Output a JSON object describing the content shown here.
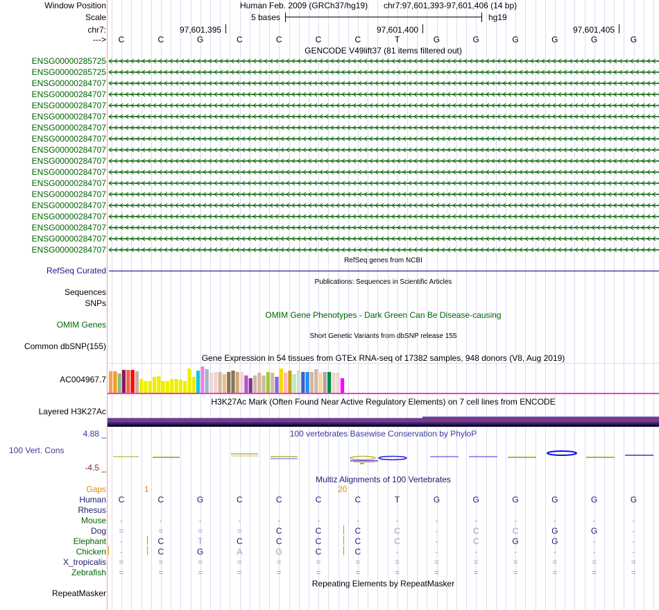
{
  "header": {
    "window_position_label": "Window Position",
    "assembly_title": "Human Feb. 2009 (GRCh37/hg19)",
    "position_range": "chr7:97,601,393-97,601,406 (14 bp)",
    "scale_label": "Scale",
    "scale_text": "5 bases",
    "scale_db": "hg19",
    "chrom_label": "chr7:",
    "strand_label": "--->",
    "ticks": [
      "97,601,395",
      "97,601,400",
      "97,601,405"
    ],
    "bases": [
      "C",
      "C",
      "G",
      "C",
      "C",
      "C",
      "C",
      "T",
      "G",
      "G",
      "G",
      "G",
      "G",
      "G"
    ]
  },
  "gencode": {
    "title": "GENCODE V49lift37 (81 items filtered out)",
    "genes": [
      "ENSG00000285725",
      "ENSG00000285725",
      "ENSG00000284707",
      "ENSG00000284707",
      "ENSG00000284707",
      "ENSG00000284707",
      "ENSG00000284707",
      "ENSG00000284707",
      "ENSG00000284707",
      "ENSG00000284707",
      "ENSG00000284707",
      "ENSG00000284707",
      "ENSG00000284707",
      "ENSG00000284707",
      "ENSG00000284707",
      "ENSG00000284707",
      "ENSG00000284707",
      "ENSG00000284707"
    ],
    "color": "#006400"
  },
  "refseq": {
    "title": "RefSeq genes from NCBI",
    "label": "RefSeq Curated"
  },
  "publications": {
    "title": "Publications: Sequences in Scientific Articles",
    "label1": "Sequences",
    "label2": "SNPs"
  },
  "omim": {
    "title": "OMIM Gene Phenotypes - Dark Green Can Be Disease-causing",
    "label": "OMIM Genes"
  },
  "dbsnp": {
    "title": "Short Genetic Variants from dbSNP release 155",
    "label": "Common dbSNP(155)"
  },
  "gtex": {
    "title": "Gene Expression in 54 tissues from GTEx RNA-seq of 17382 samples, 948 donors (V8, Aug 2019)",
    "label": "AC004967.7",
    "bars": [
      {
        "c": "#f4a25a",
        "v": 0.82
      },
      {
        "c": "#eea015",
        "v": 0.82
      },
      {
        "c": "#8fbc8f",
        "v": 0.74
      },
      {
        "c": "#8b1a5a",
        "v": 0.88
      },
      {
        "c": "#e8664e",
        "v": 0.88
      },
      {
        "c": "#ff0000",
        "v": 0.88
      },
      {
        "c": "#c8b09a",
        "v": 0.82
      },
      {
        "c": "#eeee00",
        "v": 0.52
      },
      {
        "c": "#eeee00",
        "v": 0.44
      },
      {
        "c": "#eeee00",
        "v": 0.46
      },
      {
        "c": "#eeee00",
        "v": 0.6
      },
      {
        "c": "#eeee00",
        "v": 0.63
      },
      {
        "c": "#eeee00",
        "v": 0.44
      },
      {
        "c": "#eeee00",
        "v": 0.44
      },
      {
        "c": "#eeee00",
        "v": 0.52
      },
      {
        "c": "#eeee00",
        "v": 0.52
      },
      {
        "c": "#eeee00",
        "v": 0.49
      },
      {
        "c": "#eeee00",
        "v": 0.46
      },
      {
        "c": "#eeee00",
        "v": 0.92
      },
      {
        "c": "#eeee00",
        "v": 0.6
      },
      {
        "c": "#00ced1",
        "v": 0.85
      },
      {
        "c": "#ee82ee",
        "v": 1.0
      },
      {
        "c": "#9ab8c8",
        "v": 0.89
      },
      {
        "c": "#eed5d2",
        "v": 0.76
      },
      {
        "c": "#eed5d2",
        "v": 0.79
      },
      {
        "c": "#d2b9a0",
        "v": 0.79
      },
      {
        "c": "#e8c08c",
        "v": 0.71
      },
      {
        "c": "#8b7355",
        "v": 0.8
      },
      {
        "c": "#8b7355",
        "v": 0.85
      },
      {
        "c": "#cdaa7d",
        "v": 0.8
      },
      {
        "c": "#eed5d2",
        "v": 0.8
      },
      {
        "c": "#b452cd",
        "v": 0.65
      },
      {
        "c": "#7a378b",
        "v": 0.54
      },
      {
        "c": "#d2b9a0",
        "v": 0.65
      },
      {
        "c": "#d2b9a0",
        "v": 0.75
      },
      {
        "c": "#d2b9a0",
        "v": 0.65
      },
      {
        "c": "#9acd32",
        "v": 0.8
      },
      {
        "c": "#d2b9a0",
        "v": 0.77
      },
      {
        "c": "#7b68ee",
        "v": 0.6
      },
      {
        "c": "#ffd700",
        "v": 0.92
      },
      {
        "c": "#ffb6c1",
        "v": 0.76
      },
      {
        "c": "#cd9b1d",
        "v": 0.85
      },
      {
        "c": "#b4eeb4",
        "v": 0.71
      },
      {
        "c": "#d9d9d9",
        "v": 0.85
      },
      {
        "c": "#3a5fcd",
        "v": 0.79
      },
      {
        "c": "#1e90ff",
        "v": 0.79
      },
      {
        "c": "#d2b9a0",
        "v": 0.79
      },
      {
        "c": "#d2b9a0",
        "v": 0.89
      },
      {
        "c": "#ffd39b",
        "v": 0.77
      },
      {
        "c": "#a6a6a6",
        "v": 0.8
      },
      {
        "c": "#008b45",
        "v": 0.8
      },
      {
        "c": "#eed5d2",
        "v": 0.77
      },
      {
        "c": "#eed5d2",
        "v": 0.77
      },
      {
        "c": "#ff00ff",
        "v": 0.54
      }
    ]
  },
  "h3k27ac": {
    "title": "H3K27Ac Mark (Often Found Near Active Regulatory Elements) on 7 cell lines from ENCODE",
    "label": "Layered H3K27Ac"
  },
  "phylop": {
    "title": "100 vertebrates Basewise Conservation by PhyloP",
    "label": "100 Vert. Cons",
    "max": "4.88 _",
    "min": "-4.5 _"
  },
  "multiz": {
    "title": "Multiz Alignments of 100 Vertebrates",
    "gaps_label": "Gaps",
    "gap_numbers": [
      {
        "text": "1",
        "col": 0.5
      },
      {
        "text": "20",
        "col": 5.5
      }
    ],
    "species": [
      {
        "name": "Human",
        "color": "navy",
        "seq": [
          "C",
          "C",
          "G",
          "C",
          "C",
          "C",
          "C",
          "T",
          "G",
          "G",
          "G",
          "G",
          "G",
          "G"
        ],
        "faint": []
      },
      {
        "name": "Rhesus",
        "color": "navy",
        "seq": [
          "",
          "",
          "",
          "",
          "",
          "",
          "",
          "",
          "",
          "",
          "",
          "",
          "",
          ""
        ],
        "faint": []
      },
      {
        "name": "Mouse",
        "color": "green",
        "seq": [
          "-",
          "-",
          "-",
          "-",
          "-",
          "-",
          "-",
          "-",
          "-",
          "-",
          "-",
          "-",
          "-",
          "-"
        ],
        "faint": [
          0,
          1,
          2,
          3,
          4,
          5,
          6,
          7,
          8,
          9,
          10,
          11,
          12,
          13
        ]
      },
      {
        "name": "Dog",
        "color": "navy",
        "seq": [
          "=",
          "=",
          "=",
          "=",
          "C",
          "C",
          "C",
          "C",
          "-",
          "C",
          "C",
          "G",
          "G",
          "-"
        ],
        "faint": [
          0,
          1,
          2,
          3,
          7,
          8,
          9,
          10,
          13
        ]
      },
      {
        "name": "Elephant",
        "color": "green",
        "seq": [
          "-",
          "C",
          "T",
          "C",
          "C",
          "C",
          "C",
          "C",
          "-",
          "C",
          "G",
          "G",
          "-",
          "-"
        ],
        "faint": [
          0,
          2,
          7,
          8,
          9,
          12,
          13
        ]
      },
      {
        "name": "Chicken",
        "color": "green",
        "seq": [
          "-",
          "C",
          "G",
          "A",
          "G",
          "C",
          "C",
          "-",
          "-",
          "-",
          "-",
          "-",
          "-",
          "-"
        ],
        "faint": [
          0,
          3,
          4,
          7,
          8,
          9,
          10,
          11,
          12,
          13
        ]
      },
      {
        "name": "X_tropicalis",
        "color": "navy",
        "seq": [
          "=",
          "=",
          "=",
          "=",
          "=",
          "=",
          "=",
          "=",
          "=",
          "=",
          "=",
          "=",
          "=",
          "="
        ],
        "faint": [
          0,
          1,
          2,
          3,
          4,
          5,
          6,
          7,
          8,
          9,
          10,
          11,
          12,
          13
        ]
      },
      {
        "name": "Zebrafish",
        "color": "green",
        "seq": [
          "=",
          "=",
          "=",
          "=",
          "=",
          "=",
          "=",
          "=",
          "=",
          "=",
          "=",
          "=",
          "=",
          "="
        ],
        "faint": [
          0,
          1,
          2,
          3,
          4,
          5,
          6,
          7,
          8,
          9,
          10,
          11,
          12,
          13
        ]
      }
    ]
  },
  "repeatmasker": {
    "title": "Repeating Elements by RepeatMasker",
    "label": "RepeatMasker"
  }
}
